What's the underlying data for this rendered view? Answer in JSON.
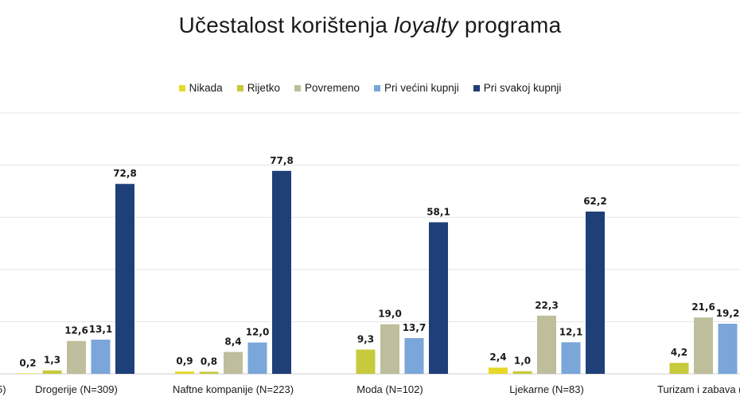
{
  "title": {
    "before": "Učestalost korištenja ",
    "italic": "loyalty",
    "after": " programa"
  },
  "chart_data": {
    "type": "bar",
    "title": "Učestalost korištenja loyalty programa",
    "categories": [
      "Drogerije (N=309)",
      "Naftne kompanije (N=223)",
      "Moda (N=102)",
      "Ljekarne (N=83)",
      "Turizam i zabava (N"
    ],
    "clipped_left_label": "5)",
    "series": [
      {
        "name": "Nikada",
        "color": "#e8d82a",
        "values": [
          0.2,
          0.9,
          null,
          2.4,
          null
        ],
        "labels": [
          "0,2",
          "0,9",
          "",
          "2,4",
          ""
        ]
      },
      {
        "name": "Rijetko",
        "color": "#c6ca3c",
        "values": [
          1.3,
          0.8,
          9.3,
          1.0,
          4.2
        ],
        "labels": [
          "1,3",
          "0,8",
          "9,3",
          "1,0",
          "4,2"
        ]
      },
      {
        "name": "Povremeno",
        "color": "#bfbe9c",
        "values": [
          12.6,
          8.4,
          19.0,
          22.3,
          21.6
        ],
        "labels": [
          "12,6",
          "8,4",
          "19,0",
          "22,3",
          "21,6"
        ]
      },
      {
        "name": "Pri većini kupnji",
        "color": "#7aa6d9",
        "values": [
          13.1,
          12.0,
          13.7,
          12.1,
          19.2
        ],
        "labels": [
          "13,1",
          "12,0",
          "13,7",
          "12,1",
          "19,2"
        ]
      },
      {
        "name": "Pri svakoj kupnji",
        "color": "#1f3f78",
        "values": [
          72.8,
          77.8,
          58.1,
          62.2,
          null
        ],
        "labels": [
          "72,8",
          "77,8",
          "58,1",
          "62,2",
          ""
        ]
      }
    ],
    "ylim": [
      0,
      100
    ],
    "grid": true,
    "legend_position": "top"
  }
}
